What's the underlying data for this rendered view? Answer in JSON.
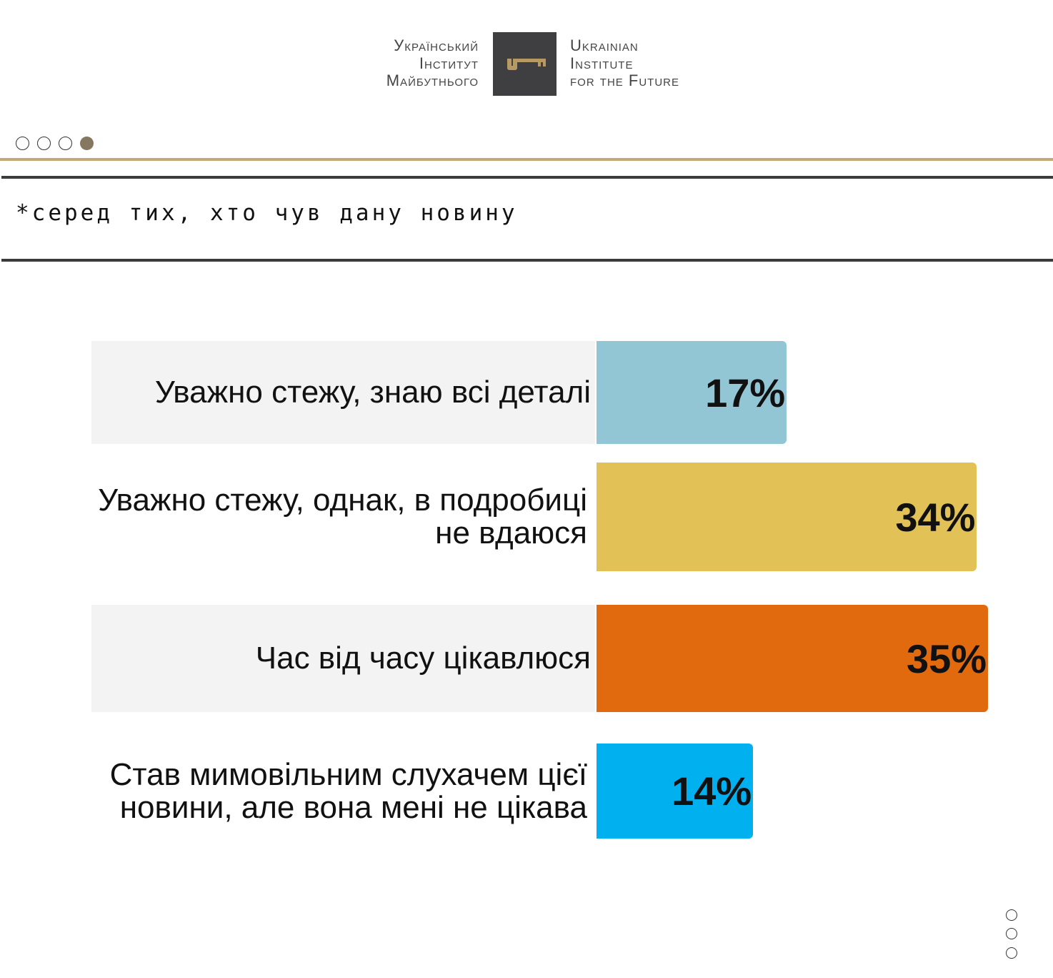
{
  "logo": {
    "ua": [
      "Український",
      "Інститут",
      "Майбутнього"
    ],
    "en": [
      "Ukrainian",
      "Institute",
      "for the Future"
    ]
  },
  "note": "*серед тих, хто чув дану новину",
  "pagination": {
    "total": 4,
    "active": 4
  },
  "chart_data": {
    "type": "bar",
    "orientation": "horizontal",
    "categories": [
      "Уважно стежу, знаю всі деталі",
      "Уважно стежу, однак, в подробиці не вдаюся",
      "Час від часу цікавлюся",
      "Став мимовільним слухачем цієї новини, але вона мені не цікава"
    ],
    "values": [
      17,
      34,
      35,
      14
    ],
    "labels": [
      "17%",
      "34%",
      "35%",
      "14%"
    ],
    "colors": [
      "#93c6d5",
      "#e2c256",
      "#e26a0e",
      "#00b0ef"
    ],
    "unit": "%"
  }
}
